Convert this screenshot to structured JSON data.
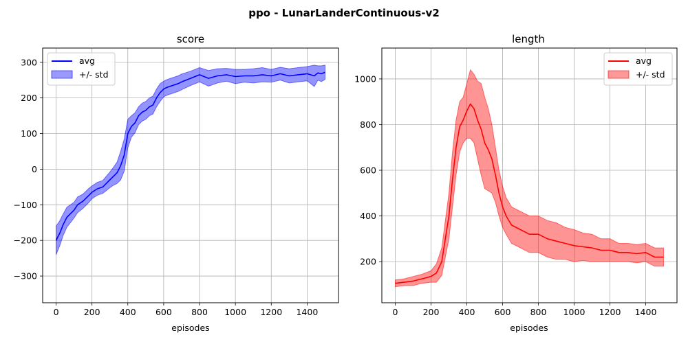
{
  "figure": {
    "suptitle": "ppo - LunarLanderContinuous-v2"
  },
  "chart_data": [
    {
      "type": "line",
      "title": "score",
      "xlabel": "episodes",
      "ylabel": "",
      "xlim": [
        -75,
        1575
      ],
      "ylim": [
        -375,
        340
      ],
      "xticks": [
        0,
        200,
        400,
        600,
        800,
        1000,
        1200,
        1400
      ],
      "yticks": [
        -300,
        -200,
        -100,
        0,
        100,
        200,
        300
      ],
      "grid": true,
      "legend_position": "top-left",
      "legend": [
        "avg",
        "+/- std"
      ],
      "colors": {
        "line": "#0000ff",
        "band": "#0000ff"
      },
      "series": [
        {
          "name": "avg",
          "x": [
            0,
            20,
            40,
            60,
            80,
            100,
            120,
            150,
            180,
            200,
            230,
            260,
            280,
            300,
            320,
            340,
            360,
            380,
            400,
            420,
            440,
            460,
            480,
            500,
            520,
            540,
            560,
            580,
            600,
            620,
            650,
            680,
            700,
            750,
            800,
            850,
            900,
            950,
            1000,
            1050,
            1100,
            1150,
            1200,
            1250,
            1300,
            1350,
            1400,
            1440,
            1460,
            1480,
            1500
          ],
          "y": [
            -200,
            -180,
            -155,
            -135,
            -125,
            -115,
            -100,
            -90,
            -75,
            -65,
            -55,
            -50,
            -40,
            -30,
            -20,
            -10,
            10,
            40,
            100,
            120,
            130,
            150,
            160,
            165,
            175,
            180,
            200,
            215,
            225,
            230,
            235,
            240,
            245,
            255,
            265,
            255,
            262,
            265,
            260,
            262,
            262,
            265,
            262,
            268,
            262,
            265,
            268,
            262,
            270,
            268,
            272
          ],
          "std": [
            40,
            35,
            30,
            28,
            25,
            22,
            22,
            20,
            20,
            18,
            18,
            18,
            20,
            22,
            25,
            30,
            40,
            45,
            40,
            30,
            28,
            25,
            25,
            25,
            25,
            25,
            25,
            25,
            22,
            22,
            22,
            22,
            22,
            20,
            20,
            22,
            20,
            18,
            20,
            18,
            20,
            20,
            18,
            18,
            20,
            20,
            20,
            30,
            20,
            22,
            20
          ]
        }
      ]
    },
    {
      "type": "line",
      "title": "length",
      "xlabel": "episodes",
      "ylabel": "",
      "xlim": [
        -75,
        1575
      ],
      "ylim": [
        20,
        1135
      ],
      "xticks": [
        0,
        200,
        400,
        600,
        800,
        1000,
        1200,
        1400
      ],
      "yticks": [
        200,
        400,
        600,
        800,
        1000
      ],
      "grid": true,
      "legend_position": "top-right",
      "legend": [
        "avg",
        "+/- std"
      ],
      "colors": {
        "line": "#ff0000",
        "band": "#ff0000"
      },
      "series": [
        {
          "name": "avg",
          "x": [
            0,
            50,
            100,
            150,
            200,
            230,
            260,
            280,
            300,
            320,
            340,
            360,
            380,
            400,
            420,
            440,
            460,
            480,
            500,
            520,
            540,
            560,
            580,
            600,
            620,
            650,
            700,
            750,
            800,
            850,
            900,
            950,
            1000,
            1050,
            1100,
            1150,
            1200,
            1250,
            1300,
            1350,
            1400,
            1450,
            1500
          ],
          "y": [
            105,
            110,
            115,
            125,
            135,
            150,
            200,
            300,
            400,
            560,
            700,
            790,
            820,
            860,
            890,
            870,
            820,
            780,
            720,
            690,
            650,
            580,
            500,
            440,
            400,
            360,
            340,
            320,
            320,
            300,
            290,
            280,
            270,
            265,
            260,
            250,
            250,
            240,
            240,
            235,
            240,
            220,
            220
          ],
          "std": [
            15,
            15,
            20,
            20,
            25,
            40,
            60,
            80,
            100,
            120,
            120,
            110,
            100,
            120,
            150,
            150,
            170,
            200,
            200,
            180,
            150,
            120,
            100,
            90,
            80,
            80,
            80,
            80,
            80,
            80,
            80,
            70,
            70,
            60,
            60,
            50,
            50,
            40,
            40,
            40,
            40,
            40,
            40
          ]
        }
      ]
    }
  ]
}
